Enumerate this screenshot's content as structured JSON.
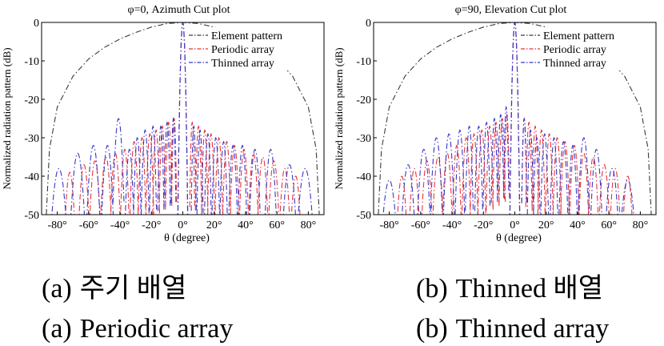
{
  "colors": {
    "element": "#3a3a3a",
    "periodic": "#e8333a",
    "thinned": "#3a38c8"
  },
  "chart_data": [
    {
      "type": "line",
      "title": "φ=0, Azimuth Cut plot",
      "xlabel": "θ (degree)",
      "ylabel": "Normalized radiation pattern (dB)",
      "xlim": [
        -90,
        90
      ],
      "ylim": [
        -50,
        0
      ],
      "xticks": [
        "-80°",
        "-60°",
        "-40°",
        "-20°",
        "0°",
        "20°",
        "40°",
        "60°",
        "80°"
      ],
      "xtick_values": [
        -80,
        -60,
        -40,
        -20,
        0,
        20,
        40,
        60,
        80
      ],
      "yticks": [
        "0",
        "-10",
        "-20",
        "-30",
        "-40",
        "-50"
      ],
      "ytick_values": [
        0,
        -10,
        -20,
        -30,
        -40,
        -50
      ],
      "legend_position": "top-right",
      "series": [
        {
          "name": "Element pattern",
          "key": "element",
          "style": "dashdot",
          "x": [
            -87,
            -85,
            -80,
            -70,
            -60,
            -50,
            -40,
            -30,
            -20,
            -10,
            0,
            10,
            20,
            30,
            40,
            50,
            60,
            70,
            80,
            85,
            87
          ],
          "y": [
            -50,
            -33,
            -22,
            -14,
            -9.5,
            -6.5,
            -4.3,
            -2.6,
            -1.2,
            -0.3,
            0,
            -0.3,
            -1.2,
            -2.6,
            -4.3,
            -6.5,
            -9.5,
            -14,
            -22,
            -33,
            -50
          ]
        },
        {
          "name": "Periodic array",
          "key": "periodic",
          "style": "dashdot",
          "mainlobe": [
            0,
            0,
            3.3
          ],
          "lobes": [
            [
              -72,
              -39,
              4
            ],
            [
              -63,
              -37,
              4
            ],
            [
              -56,
              -36,
              4
            ],
            [
              -49,
              -35,
              4
            ],
            [
              -43,
              -34,
              3.5
            ],
            [
              -37,
              -33,
              3
            ],
            [
              -31,
              -31,
              2.8
            ],
            [
              -26,
              -30,
              2.5
            ],
            [
              -21,
              -29,
              2.5
            ],
            [
              -17,
              -28,
              2.2
            ],
            [
              -13,
              -27,
              2
            ],
            [
              -9,
              -26,
              2
            ],
            [
              -5.5,
              -25,
              1.6
            ],
            [
              6,
              -26,
              1.6
            ],
            [
              10,
              -27,
              2
            ],
            [
              14,
              -28,
              2
            ],
            [
              18,
              -29,
              2.3
            ],
            [
              23,
              -30,
              2.5
            ],
            [
              28,
              -31,
              2.7
            ],
            [
              33,
              -32,
              3
            ],
            [
              39,
              -33,
              3.2
            ],
            [
              45,
              -34,
              3.5
            ],
            [
              51,
              -35,
              3.8
            ],
            [
              58,
              -36,
              4
            ],
            [
              65,
              -38,
              4
            ],
            [
              72,
              -40,
              4
            ]
          ]
        },
        {
          "name": "Thinned array",
          "key": "thinned",
          "style": "dashdot",
          "mainlobe": [
            0,
            0,
            3.3
          ],
          "lobes": [
            [
              -79,
              -38,
              6
            ],
            [
              -67,
              -34,
              5
            ],
            [
              -57,
              -32,
              4.5
            ],
            [
              -48,
              -32,
              4
            ],
            [
              -41,
              -25,
              3.5
            ],
            [
              -34,
              -33,
              3
            ],
            [
              -29,
              -30,
              2.5
            ],
            [
              -24,
              -28,
              2.5
            ],
            [
              -19,
              -27,
              2.2
            ],
            [
              -14,
              -27,
              2
            ],
            [
              -10,
              -26,
              2
            ],
            [
              -6,
              -25,
              1.6
            ],
            [
              7,
              -27,
              1.6
            ],
            [
              11,
              -28,
              2
            ],
            [
              16,
              -29,
              2.2
            ],
            [
              21,
              -30,
              2.5
            ],
            [
              26,
              -31,
              2.5
            ],
            [
              32,
              -32,
              3
            ],
            [
              38,
              -32,
              3
            ],
            [
              46,
              -33,
              3.8
            ],
            [
              56,
              -33,
              4
            ],
            [
              68,
              -37,
              5
            ],
            [
              78,
              -38,
              6
            ]
          ]
        }
      ]
    },
    {
      "type": "line",
      "title": "φ=90, Elevation Cut plot",
      "xlabel": "θ (degree)",
      "ylabel": "Normalized radiation pattern (dB)",
      "xlim": [
        -90,
        90
      ],
      "ylim": [
        -50,
        0
      ],
      "xticks": [
        "-80°",
        "-60°",
        "-40°",
        "-20°",
        "0°",
        "20°",
        "40°",
        "60°",
        "80°"
      ],
      "xtick_values": [
        -80,
        -60,
        -40,
        -20,
        0,
        20,
        40,
        60,
        80
      ],
      "yticks": [
        "0",
        "-10",
        "-20",
        "-30",
        "-40",
        "-50"
      ],
      "ytick_values": [
        0,
        -10,
        -20,
        -30,
        -40,
        -50
      ],
      "legend_position": "top-right",
      "series": [
        {
          "name": "Element pattern",
          "key": "element",
          "style": "dashdot",
          "x": [
            -87,
            -85,
            -80,
            -70,
            -60,
            -50,
            -40,
            -30,
            -20,
            -10,
            0,
            10,
            20,
            30,
            40,
            50,
            60,
            70,
            80,
            85,
            87
          ],
          "y": [
            -50,
            -33,
            -22,
            -14,
            -9.5,
            -6.5,
            -4.3,
            -2.6,
            -1.2,
            -0.3,
            0,
            -0.3,
            -1.2,
            -2.6,
            -4.3,
            -6.5,
            -9.5,
            -14,
            -22,
            -33,
            -50
          ]
        },
        {
          "name": "Periodic array",
          "key": "periodic",
          "style": "dashdot",
          "mainlobe": [
            0,
            0,
            3.3
          ],
          "lobes": [
            [
              -72,
              -40,
              4
            ],
            [
              -64,
              -38,
              4
            ],
            [
              -56,
              -36,
              4
            ],
            [
              -49,
              -35,
              3.8
            ],
            [
              -43,
              -34,
              3.5
            ],
            [
              -37,
              -32,
              3
            ],
            [
              -31,
              -30,
              2.8
            ],
            [
              -26,
              -29,
              2.5
            ],
            [
              -21,
              -28,
              2.5
            ],
            [
              -16,
              -27,
              2.2
            ],
            [
              -12,
              -26,
              2
            ],
            [
              -8,
              -25,
              2
            ],
            [
              -5,
              -24,
              1.6
            ],
            [
              6,
              -25,
              1.6
            ],
            [
              9,
              -26,
              2
            ],
            [
              13,
              -27,
              2
            ],
            [
              17,
              -28,
              2.3
            ],
            [
              22,
              -29,
              2.5
            ],
            [
              27,
              -30,
              2.7
            ],
            [
              32,
              -31,
              3
            ],
            [
              38,
              -32,
              3.2
            ],
            [
              44,
              -34,
              3.5
            ],
            [
              50,
              -35,
              3.8
            ],
            [
              57,
              -37,
              4
            ],
            [
              64,
              -38,
              4
            ],
            [
              72,
              -40,
              4
            ]
          ]
        },
        {
          "name": "Thinned array",
          "key": "thinned",
          "style": "dashdot",
          "mainlobe": [
            0,
            0,
            3.3
          ],
          "lobes": [
            [
              -80,
              -41,
              6
            ],
            [
              -68,
              -37,
              5
            ],
            [
              -58,
              -33,
              4.5
            ],
            [
              -50,
              -30,
              4
            ],
            [
              -42,
              -29,
              3.5
            ],
            [
              -35,
              -28,
              3
            ],
            [
              -29,
              -27,
              2.5
            ],
            [
              -23,
              -27,
              2.5
            ],
            [
              -18,
              -26,
              2.2
            ],
            [
              -13,
              -25,
              2
            ],
            [
              -9,
              -24,
              2
            ],
            [
              -5.5,
              -22,
              1.6
            ],
            [
              6,
              -25,
              1.6
            ],
            [
              10,
              -28,
              2
            ],
            [
              14,
              -30,
              2.2
            ],
            [
              19,
              -29,
              2.5
            ],
            [
              25,
              -30,
              2.5
            ],
            [
              31,
              -31,
              3
            ],
            [
              37,
              -32,
              3
            ],
            [
              44,
              -30,
              3.8
            ],
            [
              52,
              -33,
              4
            ],
            [
              62,
              -38,
              5
            ],
            [
              72,
              -41,
              6
            ]
          ]
        }
      ]
    }
  ],
  "captions": [
    {
      "prefix": "(a)",
      "korean": "주기 배열",
      "english": "Periodic array"
    },
    {
      "prefix": "(b)",
      "korean": "Thinned 배열",
      "english": "Thinned array"
    }
  ]
}
